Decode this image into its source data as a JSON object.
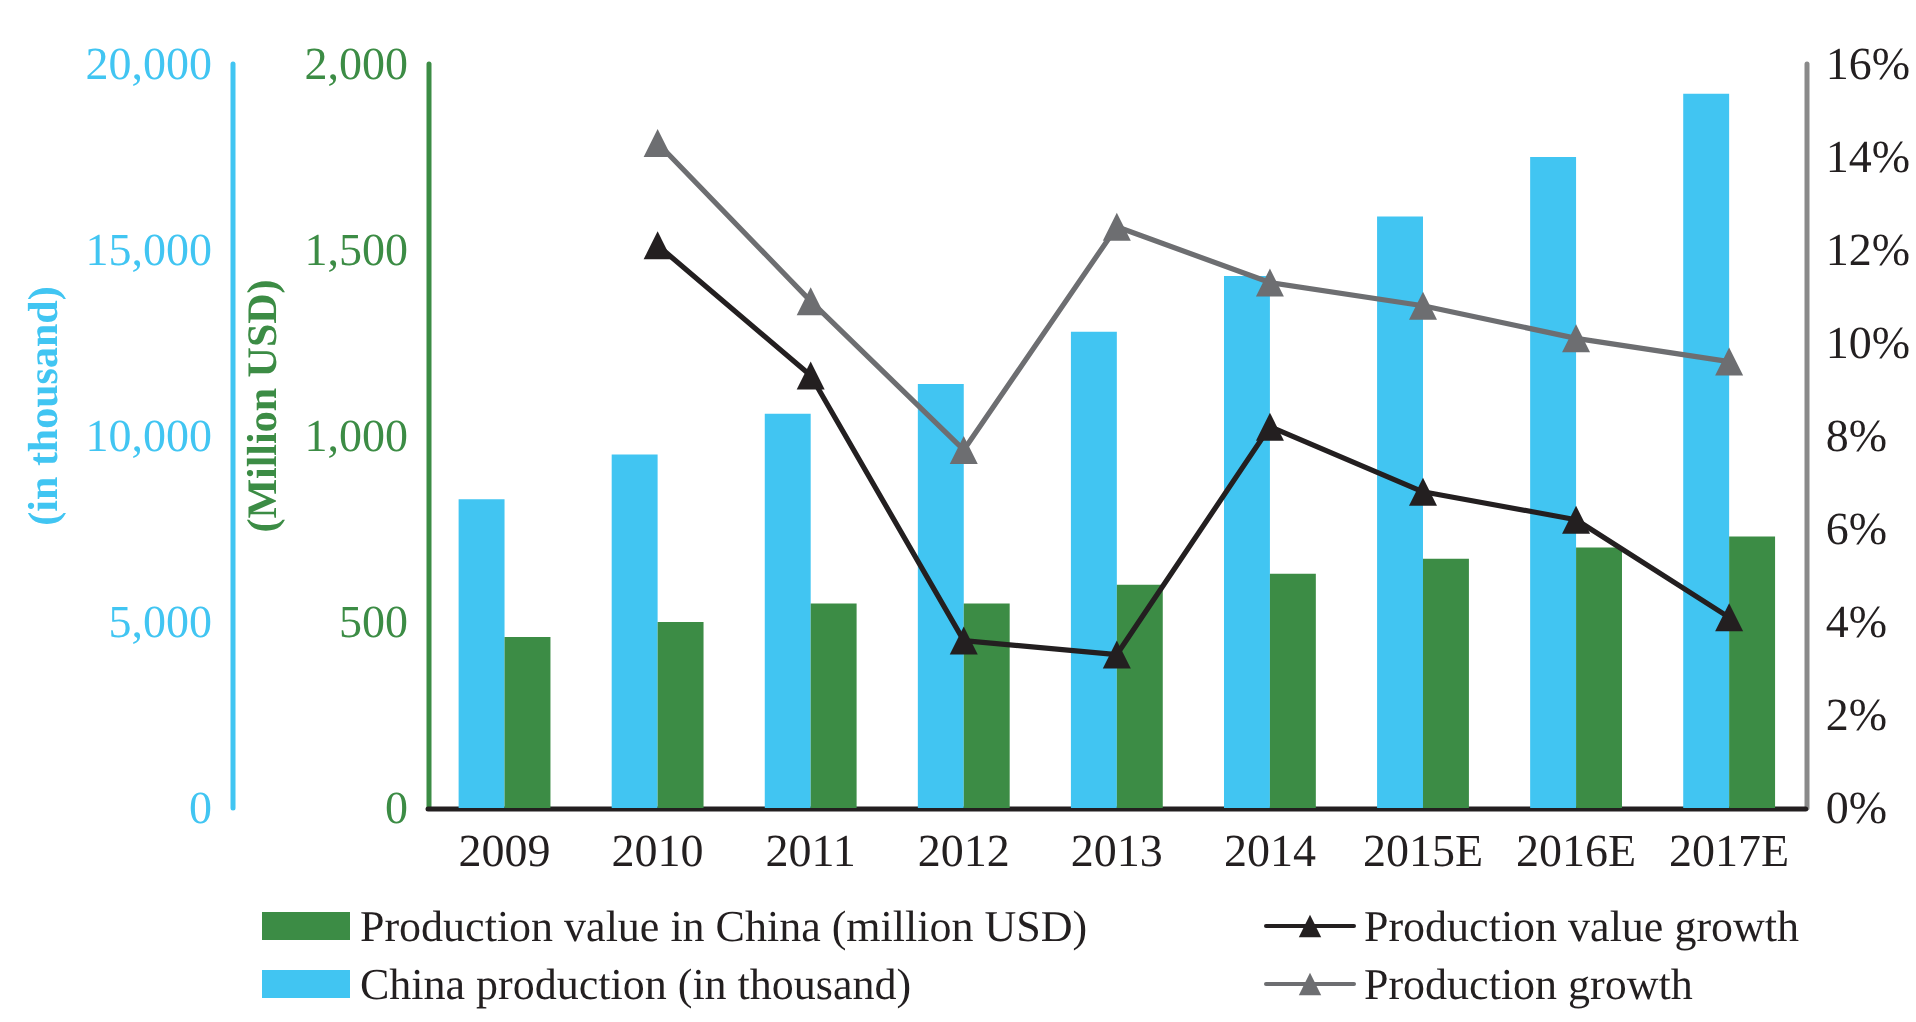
{
  "chart_data": {
    "type": "bar",
    "categories": [
      "2009",
      "2010",
      "2011",
      "2012",
      "2013",
      "2014",
      "2015E",
      "2016E",
      "2017E"
    ],
    "series": [
      {
        "name": "China production (in thousand)",
        "axis": "y",
        "color": "#41c5f2",
        "values": [
          8300,
          9500,
          10600,
          11400,
          12800,
          14300,
          15900,
          17500,
          19200
        ]
      },
      {
        "name": "Production value in China (million USD)",
        "axis": "y2",
        "color": "#3c8c45",
        "values": [
          460,
          500,
          550,
          550,
          600,
          630,
          670,
          700,
          730
        ]
      },
      {
        "name": "Production value growth",
        "type": "line",
        "axis": "y3",
        "color": "#231f20",
        "values": [
          null,
          12.1,
          9.3,
          3.6,
          3.3,
          8.2,
          6.8,
          6.2,
          4.1
        ]
      },
      {
        "name": "Production growth",
        "type": "line",
        "axis": "y3",
        "color": "#6d6e71",
        "values": [
          null,
          14.3,
          10.9,
          7.7,
          12.5,
          11.3,
          10.8,
          10.1,
          9.6
        ]
      }
    ],
    "ylabel": "(in thousand)",
    "ylim": [
      0,
      20000
    ],
    "yticks": [
      0,
      {
        "value": 5000,
        "label": "5,000"
      },
      {
        "value": 10000,
        "label": "10,000"
      },
      {
        "value": 15000,
        "label": "15,000"
      },
      {
        "value": 20000,
        "label": "20,000"
      }
    ],
    "y2label": "(Million USD)",
    "y2lim": [
      0,
      2000
    ],
    "y2ticks": [
      0,
      500,
      {
        "value": 1000,
        "label": "1,000"
      },
      {
        "value": 1500,
        "label": "1,500"
      },
      {
        "value": 2000,
        "label": "2,000"
      }
    ],
    "y3lim": [
      0,
      16
    ],
    "y3ticks": [
      {
        "value": 0,
        "label": "0%"
      },
      {
        "value": 2,
        "label": "2%"
      },
      {
        "value": 4,
        "label": "4%"
      },
      {
        "value": 6,
        "label": "6%"
      },
      {
        "value": 8,
        "label": "8%"
      },
      {
        "value": 10,
        "label": "10%"
      },
      {
        "value": 12,
        "label": "12%"
      },
      {
        "value": 14,
        "label": "14%"
      },
      {
        "value": 16,
        "label": "16%"
      }
    ],
    "grid": false,
    "legend": "bottom",
    "marker": "triangle"
  }
}
